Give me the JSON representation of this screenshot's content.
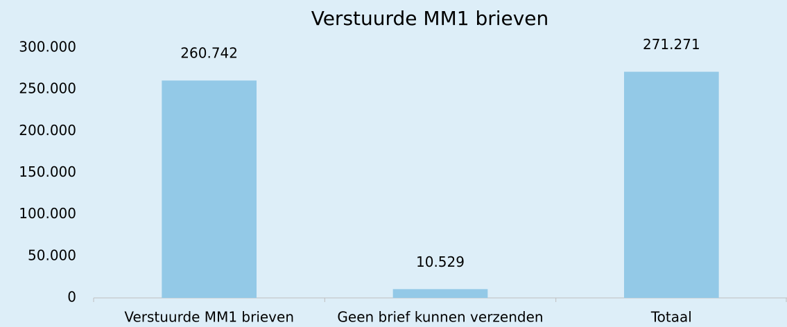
{
  "chart_data": {
    "type": "bar",
    "title": "Verstuurde MM1 brieven",
    "categories": [
      "Verstuurde MM1 brieven",
      "Geen brief kunnen verzenden",
      "Totaal"
    ],
    "values": [
      260742,
      10529,
      271271
    ],
    "value_labels": [
      "260.742",
      "10.529",
      "271.271"
    ],
    "color": "#93c9e7",
    "ylim": [
      0,
      300000
    ],
    "yticks": [
      0,
      {
        "value": 50000,
        "label": "50.000"
      },
      {
        "value": 100000,
        "label": "100.000"
      },
      {
        "value": 150000,
        "label": "150.000"
      },
      {
        "value": 200000,
        "label": "200.000"
      },
      {
        "value": 250000,
        "label": "250.000"
      },
      {
        "value": 300000,
        "label": "300.000"
      }
    ],
    "grid": false
  }
}
